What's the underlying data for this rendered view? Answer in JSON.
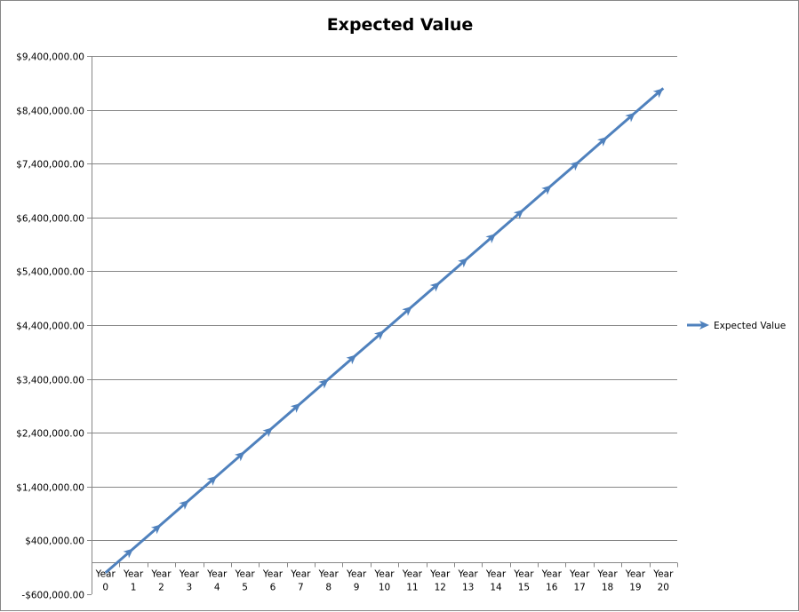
{
  "chart_data": {
    "type": "line",
    "title": "Expected Value",
    "xlabel": "",
    "ylabel": "",
    "categories": [
      [
        "Year",
        "0"
      ],
      [
        "Year",
        "1"
      ],
      [
        "Year",
        "2"
      ],
      [
        "Year",
        "3"
      ],
      [
        "Year",
        "4"
      ],
      [
        "Year",
        "5"
      ],
      [
        "Year",
        "6"
      ],
      [
        "Year",
        "7"
      ],
      [
        "Year",
        "8"
      ],
      [
        "Year",
        "9"
      ],
      [
        "Year",
        "10"
      ],
      [
        "Year",
        "11"
      ],
      [
        "Year",
        "12"
      ],
      [
        "Year",
        "13"
      ],
      [
        "Year",
        "14"
      ],
      [
        "Year",
        "15"
      ],
      [
        "Year",
        "16"
      ],
      [
        "Year",
        "17"
      ],
      [
        "Year",
        "18"
      ],
      [
        "Year",
        "19"
      ],
      [
        "Year",
        "20"
      ]
    ],
    "ylim": [
      -600000,
      9400000
    ],
    "yticks": [
      -600000,
      400000,
      1400000,
      2400000,
      3400000,
      4400000,
      5400000,
      6400000,
      7400000,
      8400000,
      9400000
    ],
    "ytick_labels": [
      "-$600,000.00",
      "$400,000.00",
      "$1,400,000.00",
      "$2,400,000.00",
      "$3,400,000.00",
      "$4,400,000.00",
      "$5,400,000.00",
      "$6,400,000.00",
      "$7,400,000.00",
      "$8,400,000.00",
      "$9,400,000.00"
    ],
    "grid": true,
    "legend_position": "right",
    "series": [
      {
        "name": "Expected Value",
        "color": "#4f81bd",
        "marker": "arrow",
        "values": [
          -200000,
          250000,
          700000,
          1150000,
          1600000,
          2050000,
          2500000,
          2950000,
          3400000,
          3850000,
          4300000,
          4750000,
          5200000,
          5650000,
          6100000,
          6550000,
          7000000,
          7450000,
          7900000,
          8350000,
          8800000
        ]
      }
    ]
  }
}
